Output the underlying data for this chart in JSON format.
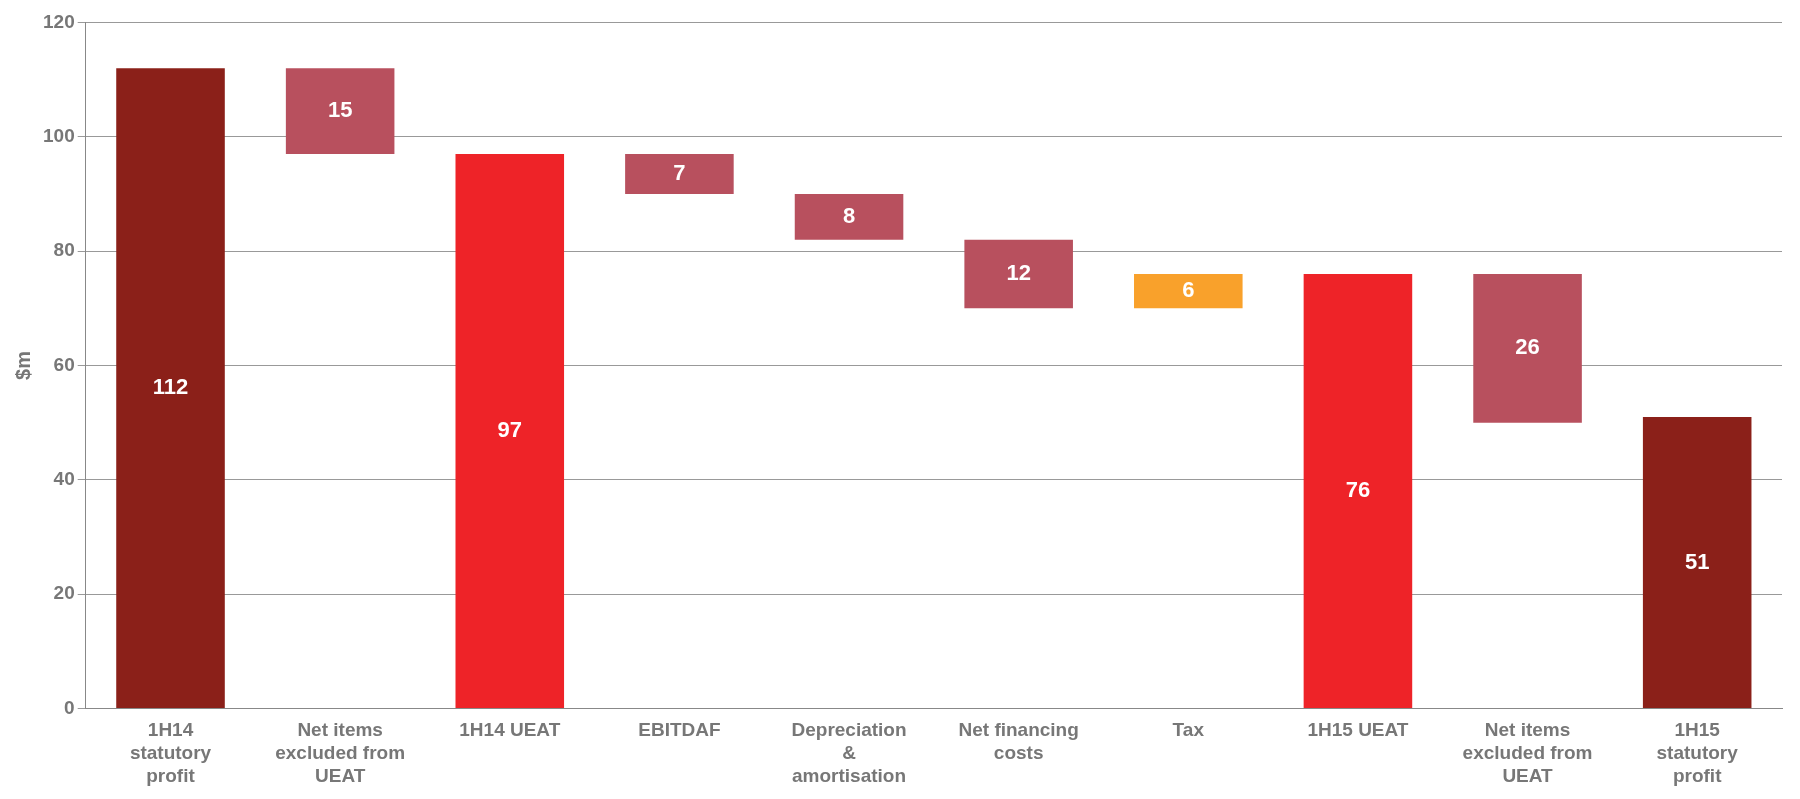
{
  "chart_data": {
    "type": "bar",
    "ylabel": "$m",
    "categories": [
      "1H14 statutory profit",
      "Net items excluded from UEAT",
      "1H14 UEAT",
      "EBITDAF",
      "Depreciation & amortisation",
      "Net financing costs",
      "Tax",
      "1H15 UEAT",
      "Net items excluded from UEAT",
      "1H15 statutory profit"
    ],
    "values": [
      112,
      15,
      97,
      7,
      8,
      12,
      6,
      76,
      26,
      51
    ],
    "base": [
      0,
      97,
      0,
      90,
      82,
      70,
      70,
      0,
      50,
      0
    ],
    "colors": [
      "#8b2019",
      "#b8505e",
      "#ee2328",
      "#b8505e",
      "#b8505e",
      "#b8505e",
      "#f9a12b",
      "#ee2328",
      "#b8505e",
      "#8b2019"
    ],
    "ylim": [
      0,
      120
    ],
    "yticks": [
      0,
      20,
      40,
      60,
      80,
      100,
      120
    ],
    "grid": "y",
    "legend": false,
    "data_labels": true
  }
}
